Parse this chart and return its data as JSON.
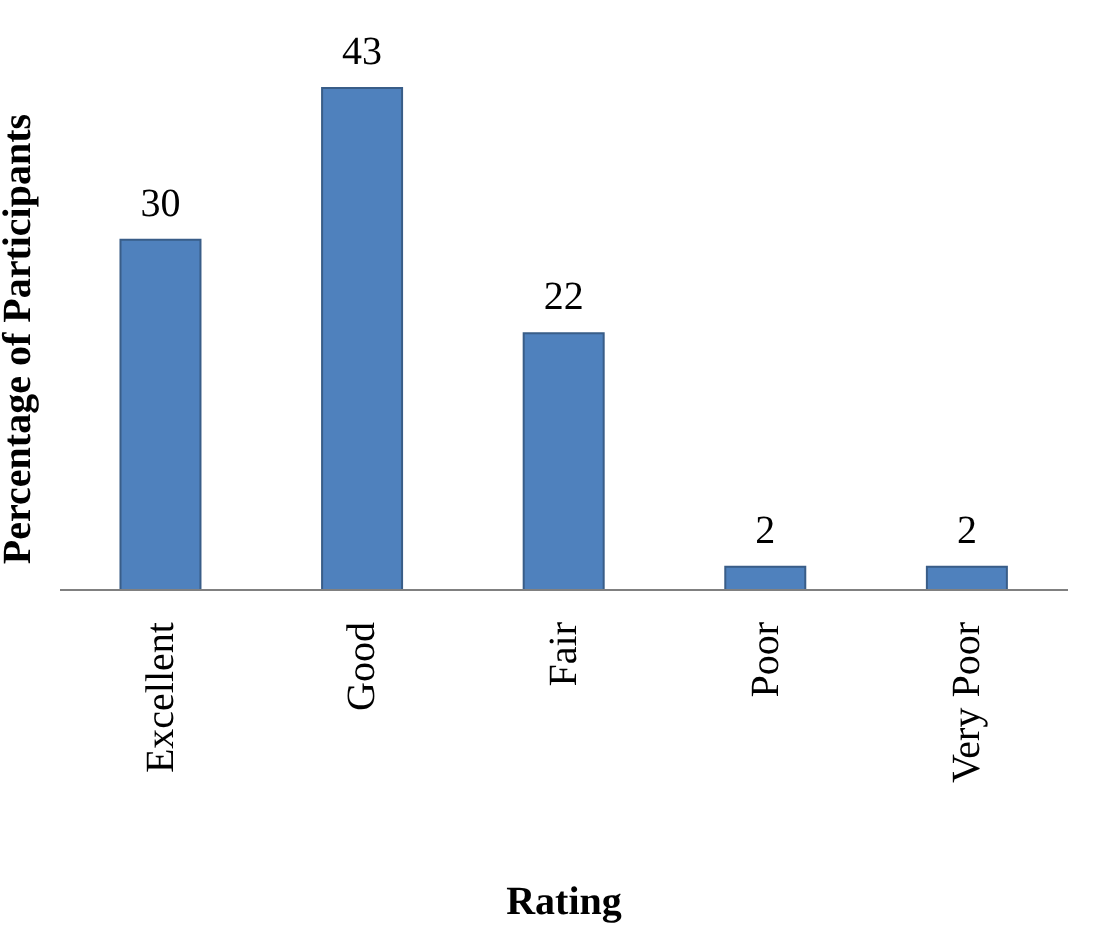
{
  "chart_data": {
    "type": "bar",
    "xlabel": "Rating",
    "ylabel": "Percentage of Participants",
    "categories": [
      "Excellent",
      "Good",
      "Fair",
      "Poor",
      "Very Poor"
    ],
    "values": [
      30,
      43,
      22,
      2,
      2
    ],
    "color": "#4f81bd",
    "data_labels": true
  }
}
